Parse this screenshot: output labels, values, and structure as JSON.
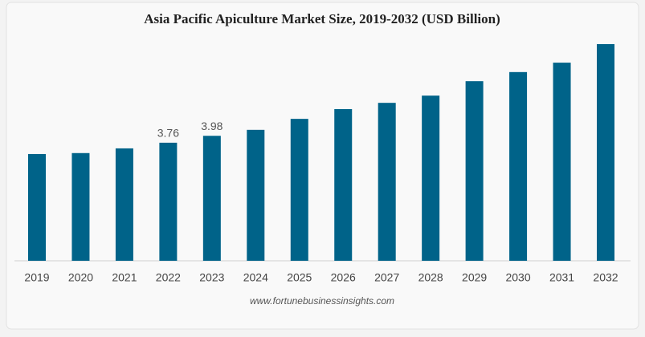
{
  "chart_data": {
    "type": "bar",
    "title": "Asia Pacific Apiculture Market Size, 2019-2032 (USD Billion)",
    "categories": [
      "2019",
      "2020",
      "2021",
      "2022",
      "2023",
      "2024",
      "2025",
      "2026",
      "2027",
      "2028",
      "2029",
      "2030",
      "2031",
      "2032"
    ],
    "values": [
      3.4,
      3.43,
      3.58,
      3.76,
      3.98,
      4.17,
      4.52,
      4.83,
      5.03,
      5.26,
      5.72,
      6.01,
      6.31,
      6.9
    ],
    "value_labels": [
      null,
      null,
      null,
      "3.76",
      "3.98",
      null,
      null,
      null,
      null,
      null,
      null,
      null,
      null,
      null
    ],
    "color": "#006389",
    "source": "www.fortunebusinessinsights.com"
  }
}
